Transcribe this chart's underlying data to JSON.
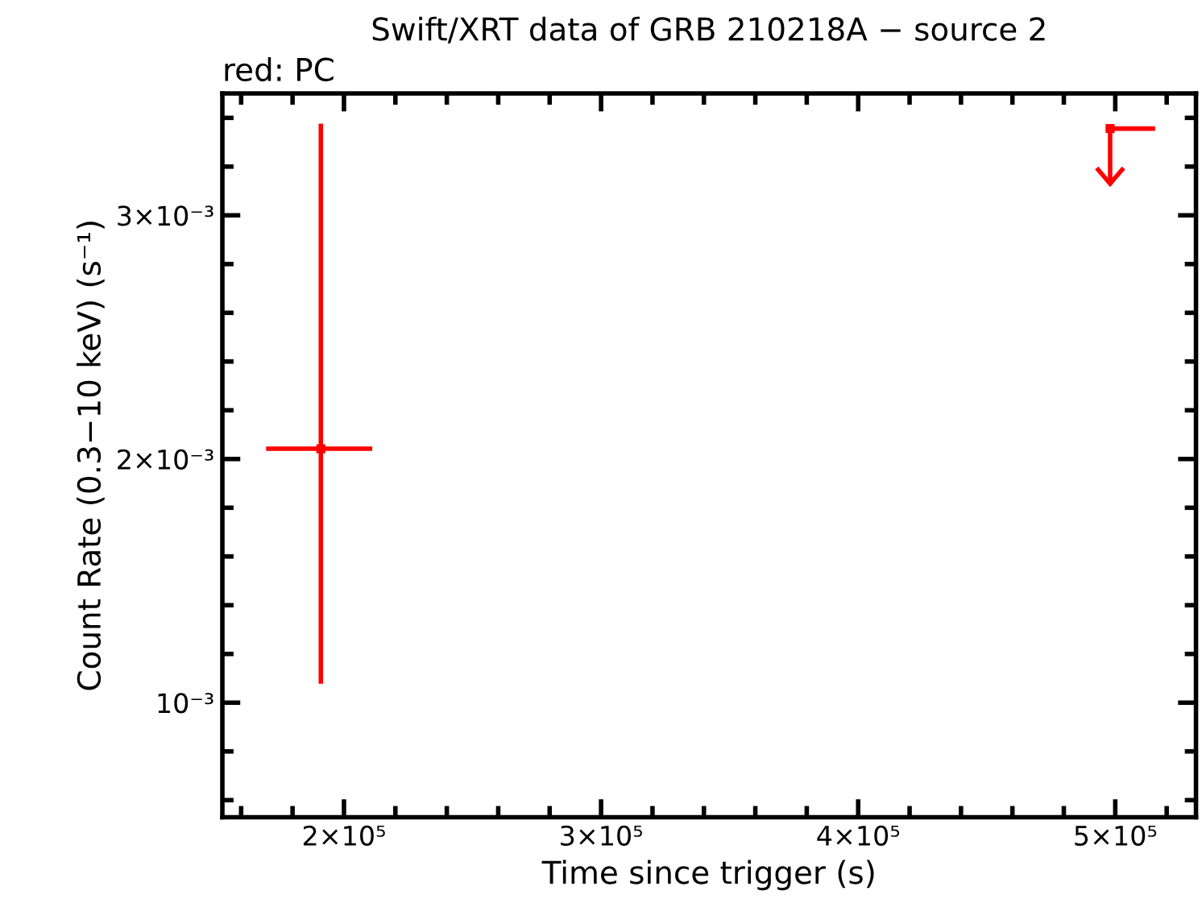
{
  "chart_data": {
    "type": "scatter",
    "title": "Swift/XRT data of GRB 210218A − source 2",
    "subtitle": "red: PC",
    "xlabel": "Time since trigger (s)",
    "ylabel": "Count Rate (0.3−10 keV) (s⁻¹)",
    "series": [
      {
        "color": "#ff0000",
        "x": [
          191000
        ],
        "values": [
          0.002042
        ],
        "errors": [
          [
            0.001078,
            0.003376
          ]
        ],
        "xerrors": [
          [
            169700,
            211000
          ]
        ]
      },
      {
        "color": "#ff0000",
        "x": [
          498000
        ],
        "values": [
          0.003356
        ],
        "errors": [
          [
            0.00313,
            0.003356
          ]
        ],
        "xerrors": [
          [
            496300,
            515500
          ]
        ]
      }
    ],
    "grid": false,
    "legend": false,
    "xlim": [
      152700,
      531400
    ],
    "ylim": [
      0.00053,
      0.0035
    ],
    "xticks": [
      {
        "value": 160000,
        "label": null
      },
      {
        "value": 180000,
        "label": null
      },
      {
        "value": 200000,
        "label": "2×10⁵"
      },
      {
        "value": 220000,
        "label": null
      },
      {
        "value": 240000,
        "label": null
      },
      {
        "value": 260000,
        "label": null
      },
      {
        "value": 280000,
        "label": null
      },
      {
        "value": 300000,
        "label": "3×10⁵"
      },
      {
        "value": 320000,
        "label": null
      },
      {
        "value": 340000,
        "label": null
      },
      {
        "value": 360000,
        "label": null
      },
      {
        "value": 380000,
        "label": null
      },
      {
        "value": 400000,
        "label": "4×10⁵"
      },
      {
        "value": 420000,
        "label": null
      },
      {
        "value": 440000,
        "label": null
      },
      {
        "value": 460000,
        "label": null
      },
      {
        "value": 480000,
        "label": null
      },
      {
        "value": 500000,
        "label": "5×10⁵"
      },
      {
        "value": 520000,
        "label": null
      }
    ],
    "yticks": [
      {
        "value": 0.0006,
        "label": null
      },
      {
        "value": 0.0008,
        "label": null
      },
      {
        "value": 0.001,
        "label": "10⁻³"
      },
      {
        "value": 0.0012,
        "label": null
      },
      {
        "value": 0.0014,
        "label": null
      },
      {
        "value": 0.0016,
        "label": null
      },
      {
        "value": 0.0018,
        "label": null
      },
      {
        "value": 0.002,
        "label": "2×10⁻³"
      },
      {
        "value": 0.0022,
        "label": null
      },
      {
        "value": 0.0024,
        "label": null
      },
      {
        "value": 0.0026,
        "label": null
      },
      {
        "value": 0.0028,
        "label": null
      },
      {
        "value": 0.003,
        "label": "3×10⁻³"
      },
      {
        "value": 0.0032,
        "label": null
      },
      {
        "value": 0.0034,
        "label": null
      }
    ]
  }
}
